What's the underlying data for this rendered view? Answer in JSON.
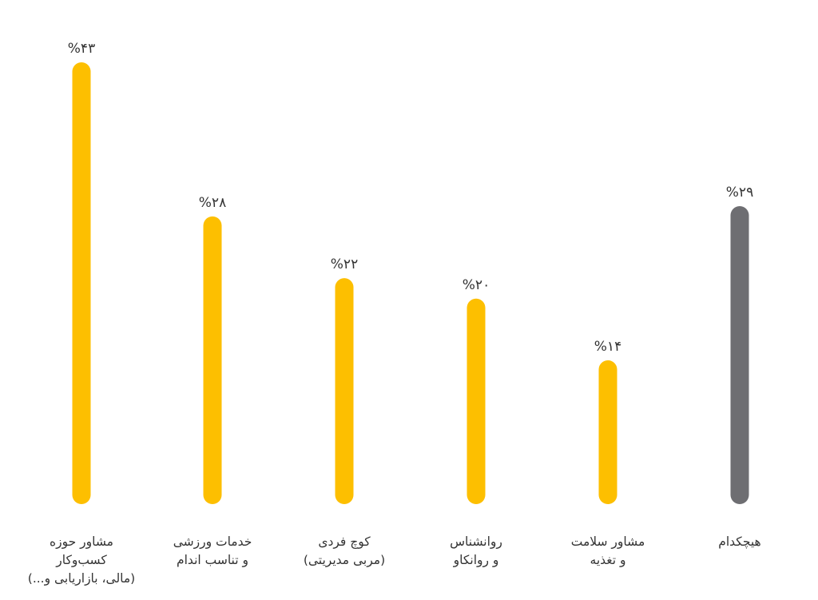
{
  "chart_data": {
    "type": "bar",
    "title": "",
    "xlabel": "",
    "ylabel": "",
    "ylim": [
      0,
      43
    ],
    "grid": false,
    "legend": "none",
    "bars": [
      {
        "value": 43,
        "label": "%۴۳",
        "category_lines": [
          "مشاور حوزه",
          "کسب‌وکار",
          "(مالی، بازاریابی و...)"
        ],
        "color": "#FDBF00"
      },
      {
        "value": 28,
        "label": "%۲۸",
        "category_lines": [
          "خدمات ورزشی",
          "و تناسب اندام"
        ],
        "color": "#FDBF00"
      },
      {
        "value": 22,
        "label": "%۲۲",
        "category_lines": [
          "کوچ فردی",
          "(مربی مدیریتی)"
        ],
        "color": "#FDBF00"
      },
      {
        "value": 20,
        "label": "%۲۰",
        "category_lines": [
          "روانشناس",
          "و روانکاو"
        ],
        "color": "#FDBF00"
      },
      {
        "value": 14,
        "label": "%۱۴",
        "category_lines": [
          "مشاور سلامت",
          "و تغذیه"
        ],
        "color": "#FDBF00"
      },
      {
        "value": 29,
        "label": "%۲۹",
        "category_lines": [
          "هیچکدام"
        ],
        "color": "#6E6E72"
      }
    ]
  }
}
